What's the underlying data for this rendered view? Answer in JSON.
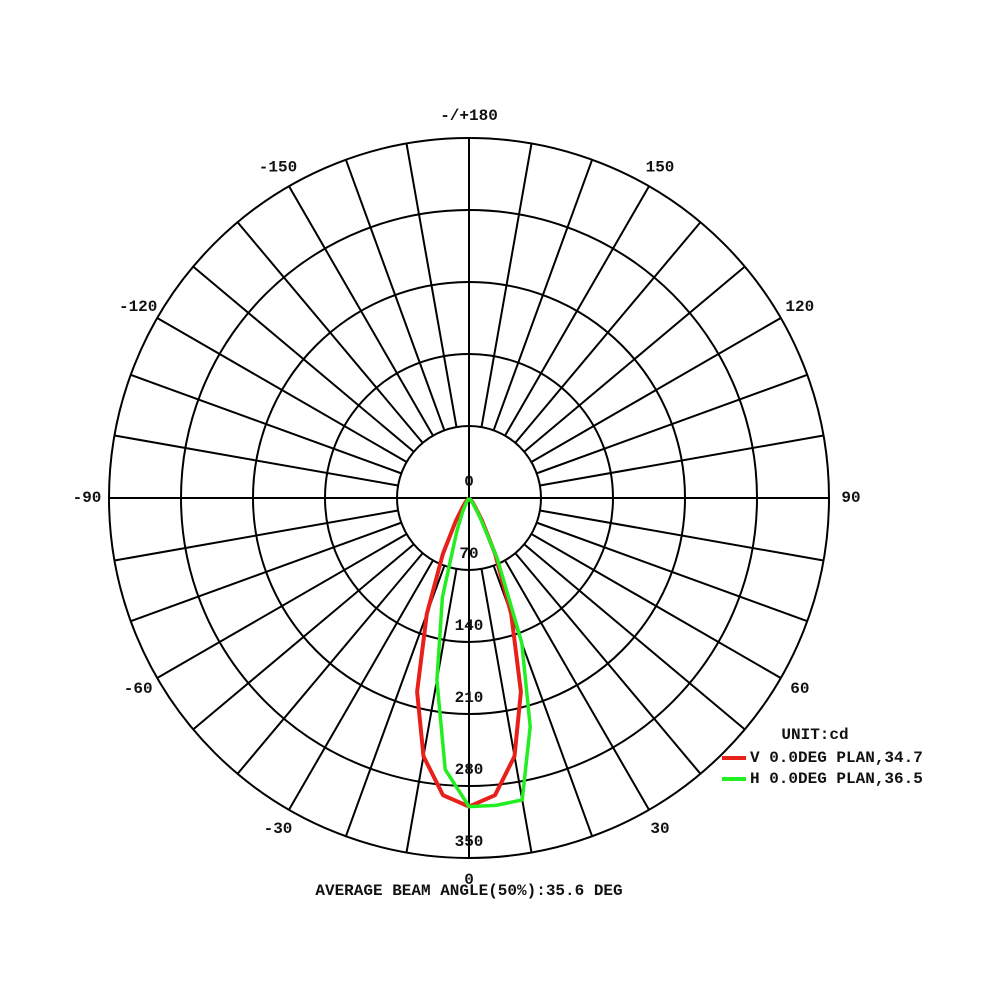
{
  "chart_data": {
    "type": "polar",
    "unit_label": "UNIT:cd",
    "footer": "AVERAGE BEAM ANGLE(50%):35.6 DEG",
    "theta": [
      -90,
      -85,
      -80,
      -75,
      -70,
      -65,
      -60,
      -55,
      -50,
      -45,
      -40,
      -35,
      -30,
      -25,
      -20,
      -15,
      -10,
      -5,
      0,
      5,
      10,
      15,
      20,
      25,
      30,
      35,
      40,
      45,
      50,
      55,
      60,
      65,
      70,
      75,
      80,
      85,
      90
    ],
    "series": [
      {
        "name": "V 0.0DEG PLAN,34.7",
        "color": "#e8201a",
        "values": [
          0,
          0,
          0,
          0,
          0,
          0,
          0,
          0,
          0,
          0,
          5,
          10,
          25,
          60,
          120,
          195,
          255,
          290,
          300,
          290,
          255,
          195,
          120,
          60,
          25,
          10,
          5,
          0,
          0,
          0,
          0,
          0,
          0,
          0,
          0,
          0,
          0
        ]
      },
      {
        "name": "H 0.0DEG PLAN,36.5",
        "color": "#22ee22",
        "values": [
          0,
          0,
          0,
          0,
          0,
          0,
          0,
          0,
          0,
          0,
          0,
          0,
          5,
          15,
          35,
          100,
          180,
          265,
          300,
          300,
          298,
          230,
          150,
          65,
          20,
          8,
          3,
          0,
          0,
          0,
          0,
          0,
          0,
          0,
          0,
          0,
          0
        ]
      }
    ],
    "rlim": [
      0,
      350
    ],
    "rticks": [
      0,
      70,
      140,
      210,
      280,
      350
    ],
    "thetaticks": [
      {
        "value": 180,
        "label": "-/+180"
      },
      150,
      120,
      90,
      60,
      30,
      0,
      -30,
      -60,
      -90,
      -120,
      -150
    ],
    "grid": true
  }
}
